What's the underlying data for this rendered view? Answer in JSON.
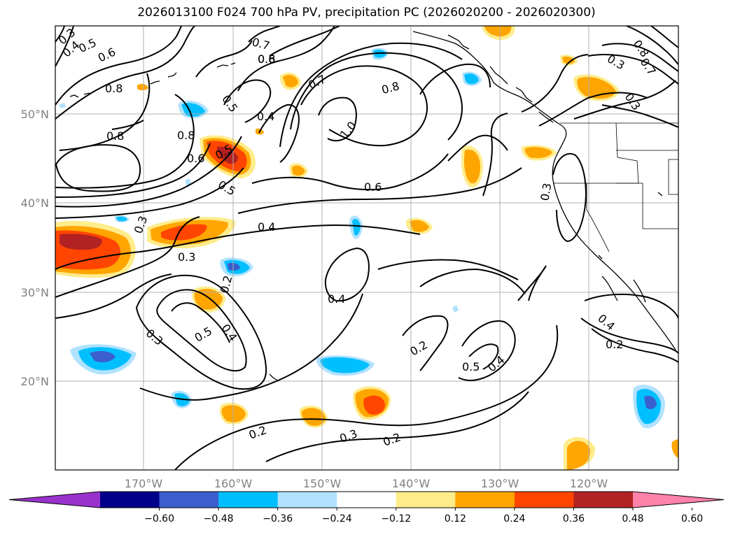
{
  "title": "2026013100 F024 700 hPa PV, precipitation PC (2026020200 - 2026020300)",
  "lon_labels": [
    "170°W",
    "160°W",
    "150°W",
    "140°W",
    "130°W",
    "120°W"
  ],
  "lat_labels": [
    "50°N",
    "40°N",
    "30°N",
    "20°N"
  ],
  "contour_labels": [
    "0.3",
    "0.4",
    "0.5",
    "0.6",
    "0.7",
    "0.8",
    "0.5",
    "0.6",
    "0.8",
    "0.8",
    "0.5",
    "0.4",
    "0.7",
    "0.8",
    "1.0",
    "0.8",
    "0.6",
    "0.5",
    "0.6",
    "0.3",
    "0.3",
    "0.4",
    "0.3",
    "0.2",
    "0.4",
    "0.3",
    "0.5",
    "0.4",
    "0.2",
    "0.5",
    "0.4",
    "0.2",
    "0.3",
    "0.2",
    "0.2",
    "0.4",
    "0.3",
    "0.8",
    "0.7",
    "0.3"
  ],
  "colorbar": {
    "ticks": [
      "−0.60",
      "−0.48",
      "−0.36",
      "−0.24",
      "−0.12",
      "0.12",
      "0.24",
      "0.36",
      "0.48",
      "0.60"
    ],
    "colors": [
      "#9932CC",
      "#00008B",
      "#3A5FCD",
      "#00BFFF",
      "#B0E2FF",
      "#FFFFFF",
      "#FFEC8B",
      "#FFA500",
      "#FF4500",
      "#B22222",
      "#FF82AB"
    ]
  }
}
